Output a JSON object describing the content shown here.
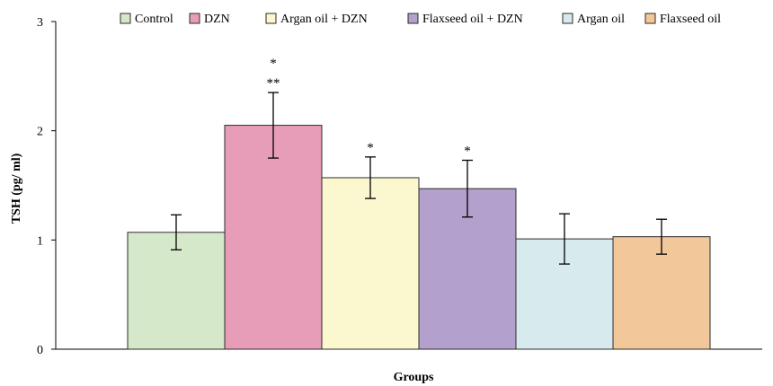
{
  "chart_data": {
    "type": "bar",
    "title": "",
    "xlabel": "Groups",
    "ylabel": "TSH (pg/ ml)",
    "ylim": [
      0,
      3
    ],
    "yticks": [
      "0",
      "1",
      "2",
      "3"
    ],
    "grid": false,
    "legend_position": "top",
    "categories": [
      "Control",
      "DZN",
      "Argan oil + DZN",
      "Flaxseed oil + DZN",
      "Argan oil",
      "Flaxseed oil"
    ],
    "values": [
      1.07,
      2.05,
      1.57,
      1.47,
      1.01,
      1.03
    ],
    "errors": [
      0.16,
      0.3,
      0.19,
      0.26,
      0.23,
      0.16
    ],
    "colors": [
      "#d5e8c9",
      "#e79db7",
      "#fbf7cf",
      "#b4a0cc",
      "#d7ebef",
      "#f2c799"
    ],
    "significance": [
      "",
      "*\n**",
      "*",
      "*",
      "",
      ""
    ]
  }
}
